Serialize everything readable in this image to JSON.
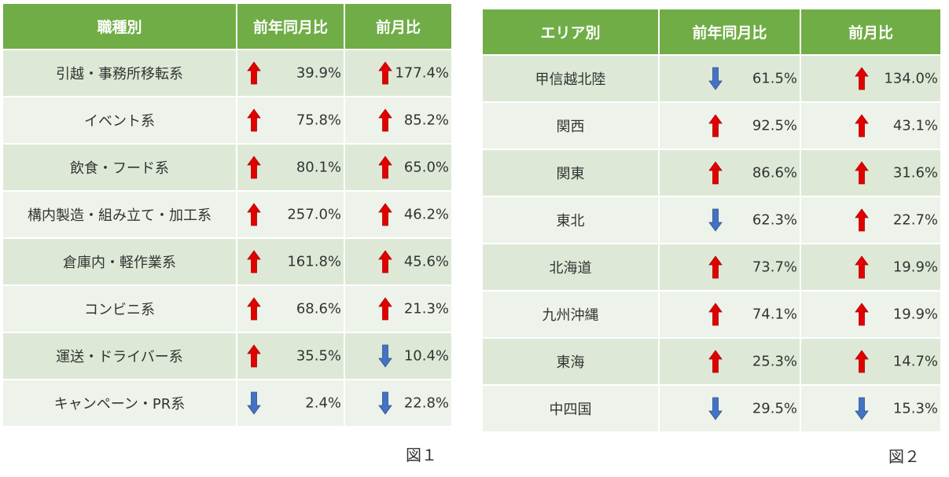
{
  "colors": {
    "header": "#70ad47",
    "row_odd": "#dde9d6",
    "row_even": "#edf3ea",
    "up": "#e00000",
    "down": "#4472c4"
  },
  "table1": {
    "headers": [
      "職種別",
      "前年同月比",
      "前月比"
    ],
    "rows": [
      {
        "name": "引越・事務所移転系",
        "yoy": {
          "dir": "up",
          "value": "39.9%"
        },
        "mom": {
          "dir": "up",
          "value": "177.4%"
        }
      },
      {
        "name": "イベント系",
        "yoy": {
          "dir": "up",
          "value": "75.8%"
        },
        "mom": {
          "dir": "up",
          "value": "85.2%"
        }
      },
      {
        "name": "飲食・フード系",
        "yoy": {
          "dir": "up",
          "value": "80.1%"
        },
        "mom": {
          "dir": "up",
          "value": "65.0%"
        }
      },
      {
        "name": "構内製造・組み立て・加工系",
        "yoy": {
          "dir": "up",
          "value": "257.0%"
        },
        "mom": {
          "dir": "up",
          "value": "46.2%"
        }
      },
      {
        "name": "倉庫内・軽作業系",
        "yoy": {
          "dir": "up",
          "value": "161.8%"
        },
        "mom": {
          "dir": "up",
          "value": "45.6%"
        }
      },
      {
        "name": "コンビニ系",
        "yoy": {
          "dir": "up",
          "value": "68.6%"
        },
        "mom": {
          "dir": "up",
          "value": "21.3%"
        }
      },
      {
        "name": "運送・ドライバー系",
        "yoy": {
          "dir": "up",
          "value": "35.5%"
        },
        "mom": {
          "dir": "down",
          "value": "10.4%"
        }
      },
      {
        "name": "キャンペーン・PR系",
        "yoy": {
          "dir": "down",
          "value": "2.4%"
        },
        "mom": {
          "dir": "down",
          "value": "22.8%"
        }
      }
    ],
    "caption": "図１"
  },
  "table2": {
    "headers": [
      "エリア別",
      "前年同月比",
      "前月比"
    ],
    "rows": [
      {
        "name": "甲信越北陸",
        "yoy": {
          "dir": "down",
          "value": "61.5%"
        },
        "mom": {
          "dir": "up",
          "value": "134.0%"
        }
      },
      {
        "name": "関西",
        "yoy": {
          "dir": "up",
          "value": "92.5%"
        },
        "mom": {
          "dir": "up",
          "value": "43.1%"
        }
      },
      {
        "name": "関東",
        "yoy": {
          "dir": "up",
          "value": "86.6%"
        },
        "mom": {
          "dir": "up",
          "value": "31.6%"
        }
      },
      {
        "name": "東北",
        "yoy": {
          "dir": "down",
          "value": "62.3%"
        },
        "mom": {
          "dir": "up",
          "value": "22.7%"
        }
      },
      {
        "name": "北海道",
        "yoy": {
          "dir": "up",
          "value": "73.7%"
        },
        "mom": {
          "dir": "up",
          "value": "19.9%"
        }
      },
      {
        "name": "九州沖縄",
        "yoy": {
          "dir": "up",
          "value": "74.1%"
        },
        "mom": {
          "dir": "up",
          "value": "19.9%"
        }
      },
      {
        "name": "東海",
        "yoy": {
          "dir": "up",
          "value": "25.3%"
        },
        "mom": {
          "dir": "up",
          "value": "14.7%"
        }
      },
      {
        "name": "中四国",
        "yoy": {
          "dir": "down",
          "value": "29.5%"
        },
        "mom": {
          "dir": "down",
          "value": "15.3%"
        }
      }
    ],
    "caption": "図２"
  }
}
